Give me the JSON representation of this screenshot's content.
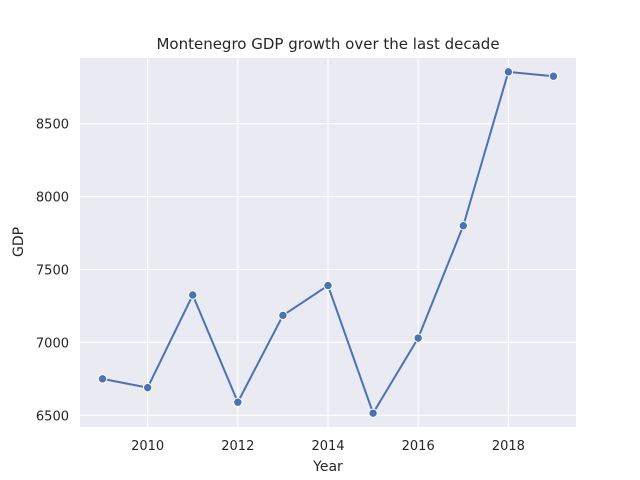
{
  "chart_data": {
    "type": "line",
    "title": "Montenegro GDP growth over the last decade",
    "xlabel": "Year",
    "ylabel": "GDP",
    "x": [
      2009,
      2010,
      2011,
      2012,
      2013,
      2014,
      2015,
      2016,
      2017,
      2018,
      2019
    ],
    "series": [
      {
        "values": [
          6750,
          6690,
          7325,
          6590,
          7185,
          7390,
          6515,
          7030,
          7800,
          8855,
          8825
        ]
      }
    ],
    "xticks": [
      "2010",
      "2012",
      "2014",
      "2016",
      "2018"
    ],
    "yticks": [
      "6500",
      "7000",
      "7500",
      "8000",
      "8500"
    ],
    "xlim": [
      2008.5,
      2019.5
    ],
    "ylim": [
      6420,
      8950
    ],
    "grid": true,
    "legend": "none",
    "colors": {
      "plot_background": "#eaeaf2",
      "grid": "#ffffff",
      "line": "#4c72b0",
      "marker_edge": "#ffffff"
    }
  }
}
